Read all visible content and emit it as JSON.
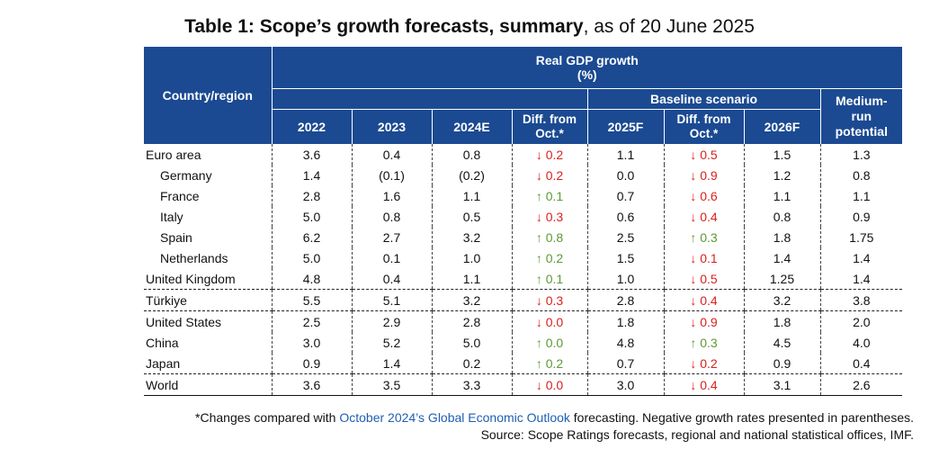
{
  "title": {
    "bold": "Table 1: Scope’s growth forecasts, summary",
    "normal": ", as of 20  June 2025"
  },
  "header": {
    "country_region": "Country/region",
    "real_gdp_growth": "Real GDP growth",
    "unit": "(%)",
    "baseline_scenario": "Baseline scenario",
    "medium_run_potential": [
      "Medium-",
      "run",
      "potential"
    ],
    "columns": [
      "2022",
      "2023",
      "2024E",
      "Diff. from Oct.*",
      "2025F",
      "Diff. from Oct.*",
      "2026F"
    ]
  },
  "rows": [
    {
      "name": "Euro area",
      "indent": false,
      "y2022": "3.6",
      "y2023": "0.4",
      "y2024": "0.8",
      "d1": "↓ 0.2",
      "d1dir": "down",
      "y2025": "1.1",
      "d2": "↓ 0.5",
      "d2dir": "down",
      "y2026": "1.5",
      "pot": "1.3"
    },
    {
      "name": "Germany",
      "indent": true,
      "y2022": "1.4",
      "y2023": "(0.1)",
      "y2024": "(0.2)",
      "d1": "↓ 0.2",
      "d1dir": "down",
      "y2025": "0.0",
      "d2": "↓ 0.9",
      "d2dir": "down",
      "y2026": "1.2",
      "pot": "0.8"
    },
    {
      "name": "France",
      "indent": true,
      "y2022": "2.8",
      "y2023": "1.6",
      "y2024": "1.1",
      "d1": "↑ 0.1",
      "d1dir": "up",
      "y2025": "0.7",
      "d2": "↓ 0.6",
      "d2dir": "down",
      "y2026": "1.1",
      "pot": "1.1"
    },
    {
      "name": "Italy",
      "indent": true,
      "y2022": "5.0",
      "y2023": "0.8",
      "y2024": "0.5",
      "d1": "↓ 0.3",
      "d1dir": "down",
      "y2025": "0.6",
      "d2": "↓ 0.4",
      "d2dir": "down",
      "y2026": "0.8",
      "pot": "0.9"
    },
    {
      "name": "Spain",
      "indent": true,
      "y2022": "6.2",
      "y2023": "2.7",
      "y2024": "3.2",
      "d1": "↑ 0.8",
      "d1dir": "up",
      "y2025": "2.5",
      "d2": "↑ 0.3",
      "d2dir": "up",
      "y2026": "1.8",
      "pot": "1.75"
    },
    {
      "name": "Netherlands",
      "indent": true,
      "y2022": "5.0",
      "y2023": "0.1",
      "y2024": "1.0",
      "d1": "↑ 0.2",
      "d1dir": "up",
      "y2025": "1.5",
      "d2": "↓ 0.1",
      "d2dir": "down",
      "y2026": "1.4",
      "pot": "1.4"
    },
    {
      "name": "United Kingdom",
      "indent": false,
      "y2022": "4.8",
      "y2023": "0.4",
      "y2024": "1.1",
      "d1": "↑ 0.1",
      "d1dir": "up",
      "y2025": "1.0",
      "d2": "↓ 0.5",
      "d2dir": "down",
      "y2026": "1.25",
      "pot": "1.4"
    },
    {
      "name": "Türkiye",
      "indent": false,
      "y2022": "5.5",
      "y2023": "5.1",
      "y2024": "3.2",
      "d1": "↓ 0.3",
      "d1dir": "down",
      "y2025": "2.8",
      "d2": "↓ 0.4",
      "d2dir": "down",
      "y2026": "3.2",
      "pot": "3.8"
    },
    {
      "name": "United States",
      "indent": false,
      "y2022": "2.5",
      "y2023": "2.9",
      "y2024": "2.8",
      "d1": "↓ 0.0",
      "d1dir": "down",
      "y2025": "1.8",
      "d2": "↓ 0.9",
      "d2dir": "down",
      "y2026": "1.8",
      "pot": "2.0"
    },
    {
      "name": "China",
      "indent": false,
      "y2022": "3.0",
      "y2023": "5.2",
      "y2024": "5.0",
      "d1": "↑ 0.0",
      "d1dir": "up",
      "y2025": "4.8",
      "d2": "↑ 0.3",
      "d2dir": "up",
      "y2026": "4.5",
      "pot": "4.0"
    },
    {
      "name": "Japan",
      "indent": false,
      "y2022": "0.9",
      "y2023": "1.4",
      "y2024": "0.2",
      "d1": "↑ 0.2",
      "d1dir": "up",
      "y2025": "0.7",
      "d2": "↓ 0.2",
      "d2dir": "down",
      "y2026": "0.9",
      "pot": "0.4"
    },
    {
      "name": "World",
      "indent": false,
      "y2022": "3.6",
      "y2023": "3.5",
      "y2024": "3.3",
      "d1": "↓ 0.0",
      "d1dir": "down",
      "y2025": "3.0",
      "d2": "↓ 0.4",
      "d2dir": "down",
      "y2026": "3.1",
      "pot": "2.6"
    }
  ],
  "separator_after": [
    "United Kingdom",
    "Türkiye",
    "Japan"
  ],
  "colors": {
    "header_bg": "#1b4a92",
    "down": "#d9211d",
    "up": "#5c9a33",
    "link": "#1f5fb0"
  },
  "footnote": {
    "prefix": "*Changes compared with ",
    "link": "October 2024’s Global Economic Outlook",
    "suffix": " forecasting. Negative growth rates presented in parentheses.",
    "source": "Source: Scope Ratings forecasts, regional and national statistical offices, IMF."
  }
}
